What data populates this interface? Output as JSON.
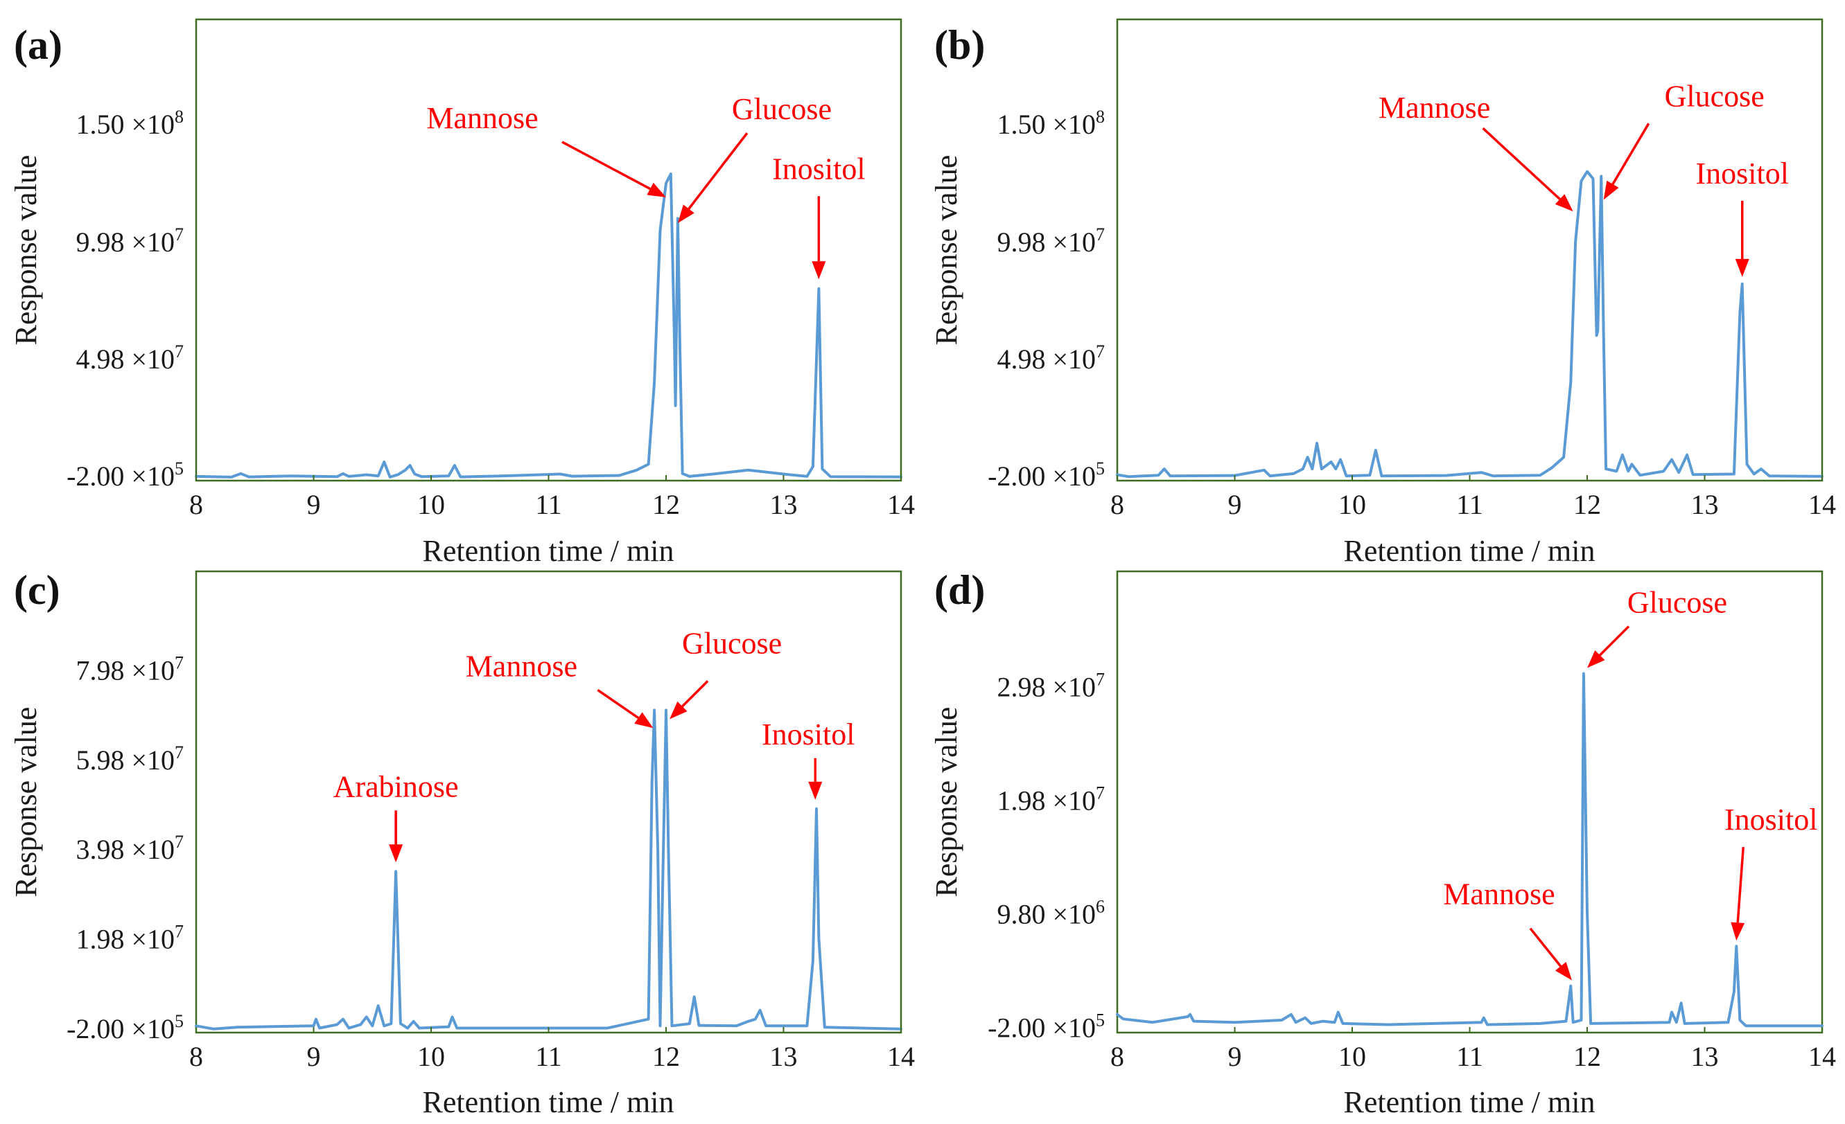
{
  "figure": {
    "description_label": "GC chromatograms of monosaccharide composition, panels a–d"
  },
  "chart_data": [
    {
      "panel": "(a)",
      "type": "line",
      "xlabel": "Retention time / min",
      "ylabel": "Response value",
      "xlim": [
        8,
        14
      ],
      "xticks": [
        "8",
        "9",
        "10",
        "11",
        "12",
        "13",
        "14"
      ],
      "ylim": [
        -2000000,
        195000000
      ],
      "yticks": [
        {
          "value": -200000,
          "mant": "-2.00",
          "exp": "5"
        },
        {
          "value": 49800000,
          "mant": "4.98",
          "exp": "7"
        },
        {
          "value": 99800000,
          "mant": "9.98",
          "exp": "7"
        },
        {
          "value": 150000000,
          "mant": "1.50",
          "exp": "8"
        }
      ],
      "trace": [
        [
          8.0,
          -200000
        ],
        [
          8.3,
          -500000
        ],
        [
          8.38,
          1000000
        ],
        [
          8.45,
          -400000
        ],
        [
          8.8,
          0
        ],
        [
          9.2,
          -300000
        ],
        [
          9.25,
          1000000
        ],
        [
          9.3,
          -200000
        ],
        [
          9.45,
          500000
        ],
        [
          9.55,
          0
        ],
        [
          9.6,
          6000000
        ],
        [
          9.65,
          -500000
        ],
        [
          9.72,
          600000
        ],
        [
          9.78,
          2500000
        ],
        [
          9.82,
          4500000
        ],
        [
          9.86,
          800000
        ],
        [
          9.92,
          -300000
        ],
        [
          10.15,
          0
        ],
        [
          10.2,
          4500000
        ],
        [
          10.25,
          -400000
        ],
        [
          10.6,
          0
        ],
        [
          11.1,
          800000
        ],
        [
          11.2,
          -100000
        ],
        [
          11.6,
          200000
        ],
        [
          11.75,
          2500000
        ],
        [
          11.85,
          5000000
        ],
        [
          11.9,
          40000000
        ],
        [
          11.95,
          105000000
        ],
        [
          12.0,
          125000000
        ],
        [
          12.04,
          129000000
        ],
        [
          12.07,
          60000000
        ],
        [
          12.08,
          30000000
        ],
        [
          12.1,
          110000000
        ],
        [
          12.12,
          50000000
        ],
        [
          12.14,
          1000000
        ],
        [
          12.2,
          -200000
        ],
        [
          12.4,
          800000
        ],
        [
          12.7,
          2500000
        ],
        [
          13.0,
          800000
        ],
        [
          13.2,
          -200000
        ],
        [
          13.25,
          4000000
        ],
        [
          13.3,
          80000000
        ],
        [
          13.33,
          3000000
        ],
        [
          13.4,
          -300000
        ],
        [
          14.0,
          -400000
        ]
      ],
      "annotations": [
        {
          "label": "Mannose",
          "x": 12.0,
          "y": 119000000
        },
        {
          "label": "Glucose",
          "x": 12.1,
          "y": 108000000
        },
        {
          "label": "Inositol",
          "x": 13.3,
          "y": 84000000
        }
      ]
    },
    {
      "panel": "(b)",
      "type": "line",
      "xlabel": "Retention time / min",
      "ylabel": "Response value",
      "xlim": [
        8,
        14
      ],
      "xticks": [
        "8",
        "9",
        "10",
        "11",
        "12",
        "13",
        "14"
      ],
      "ylim": [
        -2000000,
        195000000
      ],
      "yticks": [
        {
          "value": -200000,
          "mant": "-2.00",
          "exp": "5"
        },
        {
          "value": 49800000,
          "mant": "4.98",
          "exp": "7"
        },
        {
          "value": 99800000,
          "mant": "9.98",
          "exp": "7"
        },
        {
          "value": 150000000,
          "mant": "1.50",
          "exp": "8"
        }
      ],
      "trace": [
        [
          8.0,
          500000
        ],
        [
          8.1,
          -300000
        ],
        [
          8.35,
          300000
        ],
        [
          8.4,
          3000000
        ],
        [
          8.45,
          0
        ],
        [
          9.0,
          200000
        ],
        [
          9.25,
          2500000
        ],
        [
          9.3,
          0
        ],
        [
          9.5,
          1000000
        ],
        [
          9.58,
          3000000
        ],
        [
          9.62,
          8000000
        ],
        [
          9.66,
          3000000
        ],
        [
          9.7,
          14000000
        ],
        [
          9.74,
          3000000
        ],
        [
          9.82,
          6000000
        ],
        [
          9.86,
          3000000
        ],
        [
          9.9,
          7000000
        ],
        [
          9.95,
          0
        ],
        [
          10.15,
          300000
        ],
        [
          10.2,
          11000000
        ],
        [
          10.25,
          0
        ],
        [
          10.8,
          200000
        ],
        [
          11.1,
          1500000
        ],
        [
          11.2,
          0
        ],
        [
          11.6,
          300000
        ],
        [
          11.7,
          3500000
        ],
        [
          11.8,
          8000000
        ],
        [
          11.86,
          40000000
        ],
        [
          11.9,
          100000000
        ],
        [
          11.95,
          126000000
        ],
        [
          12.0,
          130000000
        ],
        [
          12.05,
          127000000
        ],
        [
          12.08,
          60000000
        ],
        [
          12.09,
          62000000
        ],
        [
          12.12,
          128000000
        ],
        [
          12.14,
          60000000
        ],
        [
          12.16,
          3000000
        ],
        [
          12.25,
          2000000
        ],
        [
          12.3,
          9000000
        ],
        [
          12.35,
          2000000
        ],
        [
          12.38,
          5000000
        ],
        [
          12.45,
          300000
        ],
        [
          12.65,
          2000000
        ],
        [
          12.72,
          7000000
        ],
        [
          12.78,
          1500000
        ],
        [
          12.85,
          9000000
        ],
        [
          12.9,
          600000
        ],
        [
          13.25,
          800000
        ],
        [
          13.3,
          70000000
        ],
        [
          13.32,
          82000000
        ],
        [
          13.36,
          5000000
        ],
        [
          13.42,
          800000
        ],
        [
          13.48,
          3000000
        ],
        [
          13.55,
          0
        ],
        [
          14.0,
          -200000
        ]
      ],
      "annotations": [
        {
          "label": "Mannose",
          "x": 11.88,
          "y": 113000000
        },
        {
          "label": "Glucose",
          "x": 12.14,
          "y": 118000000
        },
        {
          "label": "Inositol",
          "x": 13.32,
          "y": 85000000
        }
      ]
    },
    {
      "panel": "(c)",
      "type": "line",
      "xlabel": "Retention time / min",
      "ylabel": "Response value",
      "xlim": [
        8,
        14
      ],
      "xticks": [
        "8",
        "9",
        "10",
        "11",
        "12",
        "13",
        "14"
      ],
      "ylim": [
        -1000000,
        102000000
      ],
      "yticks": [
        {
          "value": -200000,
          "mant": "-2.00",
          "exp": "5"
        },
        {
          "value": 19800000,
          "mant": "1.98",
          "exp": "7"
        },
        {
          "value": 39800000,
          "mant": "3.98",
          "exp": "7"
        },
        {
          "value": 59800000,
          "mant": "5.98",
          "exp": "7"
        },
        {
          "value": 79800000,
          "mant": "7.98",
          "exp": "7"
        }
      ],
      "trace": [
        [
          8.0,
          500000
        ],
        [
          8.15,
          -200000
        ],
        [
          8.35,
          200000
        ],
        [
          9.0,
          500000
        ],
        [
          9.02,
          2000000
        ],
        [
          9.05,
          0
        ],
        [
          9.2,
          800000
        ],
        [
          9.25,
          2000000
        ],
        [
          9.3,
          0
        ],
        [
          9.4,
          800000
        ],
        [
          9.45,
          2500000
        ],
        [
          9.5,
          500000
        ],
        [
          9.55,
          5000000
        ],
        [
          9.6,
          500000
        ],
        [
          9.66,
          1000000
        ],
        [
          9.7,
          35000000
        ],
        [
          9.74,
          1000000
        ],
        [
          9.8,
          0
        ],
        [
          9.85,
          1500000
        ],
        [
          9.9,
          0
        ],
        [
          10.15,
          300000
        ],
        [
          10.18,
          2500000
        ],
        [
          10.22,
          0
        ],
        [
          11.5,
          0
        ],
        [
          11.85,
          2000000
        ],
        [
          11.88,
          55000000
        ],
        [
          11.9,
          71000000
        ],
        [
          11.93,
          40000000
        ],
        [
          11.95,
          500000
        ],
        [
          11.97,
          30000000
        ],
        [
          12.0,
          71000000
        ],
        [
          12.02,
          40000000
        ],
        [
          12.05,
          500000
        ],
        [
          12.2,
          1000000
        ],
        [
          12.24,
          7000000
        ],
        [
          12.28,
          600000
        ],
        [
          12.6,
          500000
        ],
        [
          12.7,
          1500000
        ],
        [
          12.76,
          2000000
        ],
        [
          12.8,
          4000000
        ],
        [
          12.85,
          500000
        ],
        [
          13.2,
          500000
        ],
        [
          13.25,
          15000000
        ],
        [
          13.28,
          49000000
        ],
        [
          13.3,
          20000000
        ],
        [
          13.35,
          200000
        ],
        [
          14.0,
          -200000
        ]
      ],
      "annotations": [
        {
          "label": "Arabinose",
          "x": 9.7,
          "y": 37000000
        },
        {
          "label": "Mannose",
          "x": 11.89,
          "y": 67000000
        },
        {
          "label": "Glucose",
          "x": 12.03,
          "y": 69000000
        },
        {
          "label": "Inositol",
          "x": 13.27,
          "y": 51000000
        }
      ]
    },
    {
      "panel": "(d)",
      "type": "line",
      "xlabel": "Retention time / min",
      "ylabel": "Response value",
      "xlim": [
        8,
        14
      ],
      "xticks": [
        "8",
        "9",
        "10",
        "11",
        "12",
        "13",
        "14"
      ],
      "ylim": [
        -600000,
        40000000
      ],
      "yticks": [
        {
          "value": -200000,
          "mant": "-2.00",
          "exp": "5"
        },
        {
          "value": 9800000,
          "mant": "9.80",
          "exp": "6"
        },
        {
          "value": 19800000,
          "mant": "1.98",
          "exp": "7"
        },
        {
          "value": 29800000,
          "mant": "2.98",
          "exp": "7"
        }
      ],
      "trace": [
        [
          8.0,
          1000000
        ],
        [
          8.05,
          600000
        ],
        [
          8.3,
          300000
        ],
        [
          8.6,
          800000
        ],
        [
          8.62,
          1000000
        ],
        [
          8.65,
          400000
        ],
        [
          9.0,
          300000
        ],
        [
          9.4,
          500000
        ],
        [
          9.48,
          1000000
        ],
        [
          9.52,
          300000
        ],
        [
          9.6,
          700000
        ],
        [
          9.65,
          200000
        ],
        [
          9.75,
          400000
        ],
        [
          9.85,
          300000
        ],
        [
          9.88,
          1200000
        ],
        [
          9.92,
          200000
        ],
        [
          10.3,
          100000
        ],
        [
          11.1,
          300000
        ],
        [
          11.12,
          700000
        ],
        [
          11.15,
          100000
        ],
        [
          11.6,
          200000
        ],
        [
          11.82,
          400000
        ],
        [
          11.86,
          3500000
        ],
        [
          11.88,
          300000
        ],
        [
          11.95,
          500000
        ],
        [
          11.97,
          31000000
        ],
        [
          12.0,
          10000000
        ],
        [
          12.03,
          200000
        ],
        [
          12.7,
          300000
        ],
        [
          12.72,
          1200000
        ],
        [
          12.76,
          300000
        ],
        [
          12.8,
          2000000
        ],
        [
          12.83,
          200000
        ],
        [
          13.2,
          300000
        ],
        [
          13.25,
          3000000
        ],
        [
          13.27,
          7000000
        ],
        [
          13.3,
          500000
        ],
        [
          13.35,
          0
        ],
        [
          14.0,
          0
        ]
      ],
      "annotations": [
        {
          "label": "Mannose",
          "x": 11.87,
          "y": 4000000
        },
        {
          "label": "Glucose",
          "x": 12.0,
          "y": 31500000
        },
        {
          "label": "Inositol",
          "x": 13.27,
          "y": 7500000
        }
      ]
    }
  ]
}
